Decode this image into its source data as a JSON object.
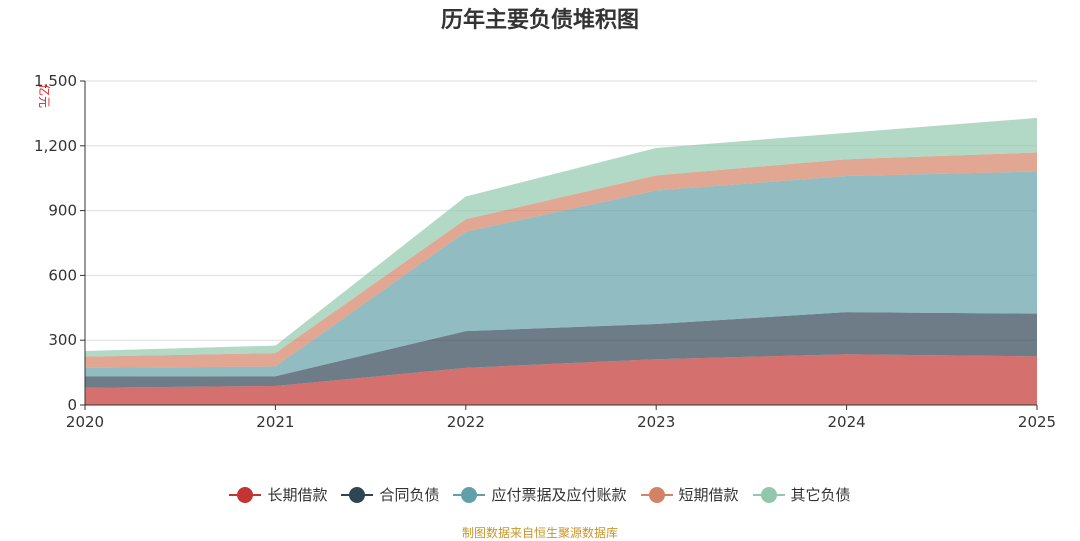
{
  "chart_data": {
    "type": "area",
    "stacked": true,
    "title": "历年主要负债堆积图",
    "ylabel": "亿元",
    "xlabel": "",
    "ylim": [
      0,
      1500
    ],
    "yticks": [
      0,
      300,
      600,
      900,
      1200,
      1500
    ],
    "ytick_labels": [
      "0",
      "300",
      "600",
      "900",
      "1,200",
      "1,500"
    ],
    "categories": [
      "2020",
      "2021",
      "2022",
      "2023",
      "2024",
      "2025"
    ],
    "series": [
      {
        "name": "长期借款",
        "color": "#c23531",
        "values": [
          80,
          88,
          172,
          212,
          235,
          225
        ]
      },
      {
        "name": "合同负债",
        "color": "#2f4554",
        "values": [
          52,
          45,
          170,
          163,
          195,
          198
        ]
      },
      {
        "name": "应付票据及应付账款",
        "color": "#61a0a8",
        "values": [
          40,
          45,
          460,
          618,
          630,
          658
        ]
      },
      {
        "name": "短期借款",
        "color": "#d48265",
        "values": [
          52,
          62,
          58,
          70,
          78,
          88
        ]
      },
      {
        "name": "其它负债",
        "color": "#91c7ae",
        "values": [
          26,
          35,
          105,
          127,
          122,
          160
        ]
      }
    ],
    "grid": true,
    "legend_position": "bottom"
  },
  "source_text": "制图数据来自恒生聚源数据库"
}
